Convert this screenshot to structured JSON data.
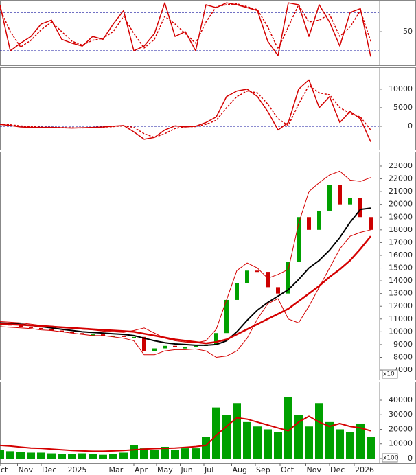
{
  "chart_data": [
    {
      "type": "line",
      "ylim": [
        15,
        83
      ],
      "yticks": [
        50
      ],
      "hlines": [
        30,
        70
      ],
      "x": [
        0,
        1,
        2,
        3,
        4,
        5,
        6,
        7,
        8,
        9,
        10,
        11,
        12,
        13,
        14,
        15,
        16,
        17,
        18,
        19,
        20,
        21,
        22,
        23,
        24,
        25,
        26,
        27,
        28,
        29,
        30,
        31,
        32,
        33,
        34,
        35,
        36
      ],
      "series": [
        {
          "color": "#d40000",
          "values": [
            78,
            30,
            38,
            45,
            58,
            62,
            42,
            38,
            35,
            45,
            42,
            58,
            72,
            30,
            35,
            48,
            80,
            45,
            50,
            30,
            78,
            75,
            80,
            78,
            75,
            72,
            40,
            25,
            80,
            78,
            45,
            78,
            60,
            35,
            70,
            74,
            24
          ]
        },
        {
          "color": "#d40000",
          "dash": true,
          "values": [
            74,
            50,
            34,
            41,
            52,
            60,
            50,
            40,
            36,
            41,
            43,
            50,
            66,
            48,
            33,
            42,
            66,
            58,
            48,
            38,
            60,
            76,
            78,
            79,
            76,
            73,
            55,
            32,
            55,
            78,
            60,
            62,
            68,
            45,
            55,
            72,
            40
          ]
        }
      ]
    },
    {
      "type": "line",
      "ylim": [
        -6300,
        15900
      ],
      "yticks": [
        0,
        5000,
        10000
      ],
      "hlines": [
        0
      ],
      "x": [
        0,
        1,
        2,
        3,
        4,
        5,
        6,
        7,
        8,
        9,
        10,
        11,
        12,
        13,
        14,
        15,
        16,
        17,
        18,
        19,
        20,
        21,
        22,
        23,
        24,
        25,
        26,
        27,
        28,
        29,
        30,
        31,
        32,
        33,
        34,
        35,
        36
      ],
      "series": [
        {
          "color": "#d40000",
          "values": [
            500,
            200,
            -200,
            -300,
            -300,
            -300,
            -400,
            -500,
            -400,
            -300,
            -200,
            0,
            200,
            -1500,
            -3500,
            -3000,
            -1000,
            100,
            -200,
            0,
            1000,
            2500,
            8000,
            9500,
            10000,
            8000,
            4000,
            -1000,
            1000,
            10000,
            12500,
            5000,
            8000,
            1000,
            4000,
            2000,
            -4200
          ]
        },
        {
          "color": "#d40000",
          "dash": true,
          "values": [
            600,
            400,
            100,
            -100,
            -250,
            -300,
            -350,
            -400,
            -450,
            -350,
            -250,
            -100,
            100,
            -300,
            -2000,
            -3000,
            -2000,
            -600,
            -100,
            -100,
            500,
            1600,
            5000,
            8000,
            9500,
            9000,
            6000,
            2000,
            200,
            6000,
            11000,
            9000,
            8500,
            5000,
            3500,
            2500,
            -1000
          ]
        }
      ]
    },
    {
      "type": "price",
      "ylim": [
        6250,
        24130
      ],
      "unit_label": "x10",
      "yticks": [
        7000,
        8000,
        9000,
        10000,
        11000,
        12000,
        13000,
        14000,
        15000,
        16000,
        17000,
        18000,
        19000,
        20000,
        21000,
        22000,
        23000
      ],
      "x": [
        0,
        1,
        2,
        3,
        4,
        5,
        6,
        7,
        8,
        9,
        10,
        11,
        12,
        13,
        14,
        15,
        16,
        17,
        18,
        19,
        20,
        21,
        22,
        23,
        24,
        25,
        26,
        27,
        28,
        29,
        30,
        31,
        32,
        33,
        34,
        35,
        36
      ],
      "series": [
        {
          "style": "candle",
          "values": [
            10600,
            10500,
            10400,
            10300,
            10200,
            10100,
            10000,
            9900,
            9800,
            9800,
            9700,
            9700,
            9600,
            9600,
            8500,
            8700,
            8900,
            8800,
            8800,
            8900,
            9000,
            9900,
            12500,
            13800,
            14800,
            14700,
            13500,
            13000,
            15500,
            19000,
            18000,
            19500,
            21500,
            20000,
            20500,
            19000,
            18000
          ]
        },
        {
          "color": "#d40000",
          "width": 1,
          "values": [
            10800,
            10750,
            10700,
            10600,
            10500,
            10450,
            10350,
            10300,
            10200,
            10150,
            10050,
            10000,
            9950,
            10100,
            10300,
            9900,
            9500,
            9300,
            9200,
            9150,
            9300,
            10200,
            12500,
            14800,
            15400,
            15000,
            14200,
            14500,
            14900,
            18500,
            21000,
            21700,
            22300,
            22600,
            21900,
            21800,
            22100
          ]
        },
        {
          "color": "#d40000",
          "width": 1,
          "values": [
            10400,
            10350,
            10300,
            10250,
            10150,
            10100,
            10000,
            9900,
            9800,
            9700,
            9700,
            9600,
            9500,
            9300,
            8200,
            8200,
            8500,
            8600,
            8600,
            8650,
            8500,
            8000,
            8100,
            8500,
            9500,
            11000,
            12200,
            12600,
            11000,
            10700,
            12000,
            13500,
            15000,
            16500,
            17500,
            17800,
            18000
          ]
        },
        {
          "color": "#000000",
          "width": 2,
          "values": [
            10700,
            10650,
            10600,
            10500,
            10400,
            10300,
            10200,
            10100,
            10000,
            9950,
            9900,
            9850,
            9800,
            9700,
            9500,
            9300,
            9150,
            9050,
            9000,
            8950,
            8950,
            9000,
            9300,
            10000,
            10900,
            11700,
            12300,
            12800,
            13300,
            14100,
            15000,
            15600,
            16400,
            17400,
            18600,
            19600,
            19700
          ]
        },
        {
          "color": "#d40000",
          "width": 2.5,
          "values": [
            10600,
            10580,
            10550,
            10500,
            10450,
            10400,
            10350,
            10300,
            10250,
            10200,
            10150,
            10100,
            10050,
            10000,
            9850,
            9700,
            9550,
            9400,
            9300,
            9200,
            9100,
            9200,
            9400,
            9800,
            10200,
            10600,
            11000,
            11400,
            11800,
            12400,
            13000,
            13600,
            14300,
            14900,
            15600,
            16500,
            17500
          ]
        }
      ]
    },
    {
      "type": "bar",
      "ylim": [
        -3300,
        52700
      ],
      "unit_label": "x100",
      "yticks": [
        0,
        10000,
        20000,
        30000,
        40000
      ],
      "xlim": [
        0,
        36.8
      ],
      "xticks": [
        {
          "value": 0,
          "label": "ct"
        },
        {
          "value": 1.7,
          "label": "Nov"
        },
        {
          "value": 4,
          "label": "Dec"
        },
        {
          "value": 6.5,
          "label": "2025"
        },
        {
          "value": 10.5,
          "label": "Mar"
        },
        {
          "value": 13,
          "label": "Apr"
        },
        {
          "value": 15.2,
          "label": "May"
        },
        {
          "value": 17.5,
          "label": "Jun"
        },
        {
          "value": 19.8,
          "label": "Jul"
        },
        {
          "value": 22.5,
          "label": "Aug"
        },
        {
          "value": 24.8,
          "label": "Sep"
        },
        {
          "value": 27.2,
          "label": "Oct"
        },
        {
          "value": 29.7,
          "label": "Nov"
        },
        {
          "value": 32,
          "label": "Dec"
        },
        {
          "value": 34.4,
          "label": "2026"
        }
      ],
      "x": [
        0,
        1,
        2,
        3,
        4,
        5,
        6,
        7,
        8,
        9,
        10,
        11,
        12,
        13,
        14,
        15,
        16,
        17,
        18,
        19,
        20,
        21,
        22,
        23,
        24,
        25,
        26,
        27,
        28,
        29,
        30,
        31,
        32,
        33,
        34,
        35,
        36
      ],
      "series": [
        {
          "color": "#00a000",
          "style": "bar",
          "values": [
            6000,
            5000,
            4500,
            4000,
            4000,
            3500,
            3000,
            3000,
            3500,
            3000,
            2500,
            3000,
            4000,
            9000,
            7000,
            6000,
            8000,
            6000,
            7000,
            7000,
            15000,
            35000,
            30000,
            38000,
            25000,
            22000,
            20000,
            18000,
            42000,
            30000,
            22000,
            38000,
            25000,
            20000,
            18000,
            24000,
            15000
          ]
        },
        {
          "color": "#d40000",
          "width": 2,
          "values": [
            9000,
            8500,
            7800,
            7200,
            7000,
            6500,
            6000,
            5500,
            5200,
            5000,
            5000,
            5200,
            5500,
            6000,
            6500,
            6800,
            7000,
            7200,
            7600,
            8200,
            9000,
            16000,
            22000,
            28000,
            27000,
            25000,
            23000,
            21000,
            19000,
            25000,
            29000,
            25000,
            22000,
            24000,
            22000,
            21000,
            19000
          ]
        }
      ]
    }
  ]
}
